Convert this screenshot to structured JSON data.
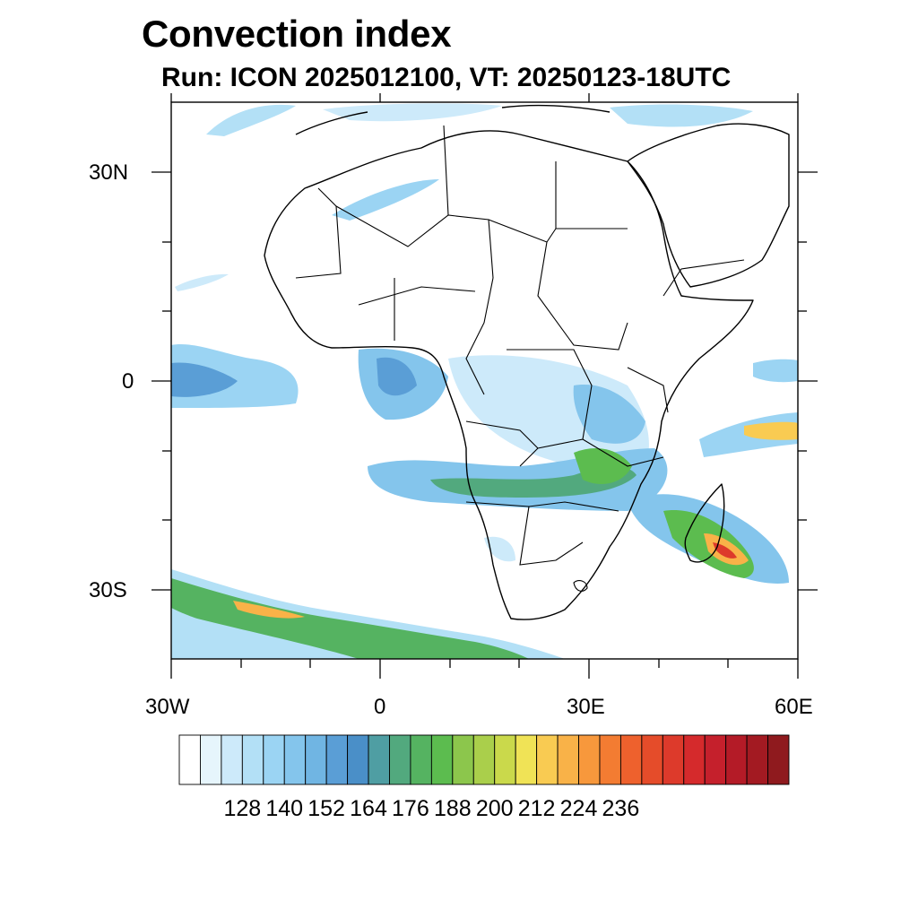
{
  "title": "Convection index",
  "subtitle": "Run: ICON 2025012100,  VT: 20250123-18UTC",
  "map": {
    "region": "Africa",
    "lon_range": [
      -30,
      60
    ],
    "lat_range": [
      -40,
      40
    ],
    "lat_tick_labels": [
      "30N",
      "0",
      "30S"
    ],
    "lon_tick_labels": [
      "30W",
      "0",
      "30E",
      "60E"
    ],
    "background_color": "#ffffff",
    "outline_color": "#000000"
  },
  "colorbar": {
    "tick_labels": [
      "128",
      "140",
      "152",
      "164",
      "176",
      "188",
      "200",
      "212",
      "224",
      "236"
    ],
    "colors": [
      "#ffffff",
      "#e6f5fc",
      "#cdeafa",
      "#b3e0f6",
      "#9bd4f3",
      "#84c5ec",
      "#70b5e3",
      "#5a9ed6",
      "#4a8fc8",
      "#4f9ea3",
      "#52a97e",
      "#55b361",
      "#5cbc4f",
      "#8cc64c",
      "#aacf4b",
      "#cad94b",
      "#f0e356",
      "#f9cb52",
      "#f9b248",
      "#f7983c",
      "#f37c32",
      "#ee612d",
      "#e54c2a",
      "#dd3a2b",
      "#d52a2c",
      "#c5202c",
      "#b41b27",
      "#a31a22",
      "#8f1a1e"
    ]
  }
}
